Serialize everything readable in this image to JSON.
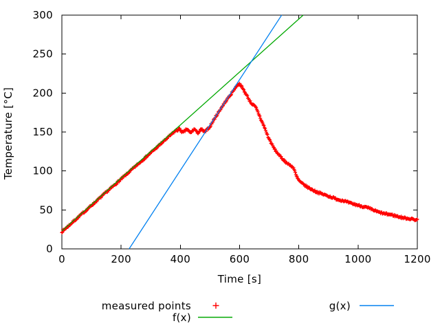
{
  "window": {
    "background": "#ffffff"
  },
  "chart_data": {
    "type": "scatter",
    "title": "",
    "xlabel": "Time [s]",
    "ylabel": "Temperature [°C]",
    "xlim": [
      0,
      1200
    ],
    "ylim": [
      0,
      300
    ],
    "xticks": [
      "0",
      "200",
      "400",
      "600",
      "800",
      "1000",
      "1200"
    ],
    "xtick_values": [
      0,
      200,
      400,
      600,
      800,
      1000,
      1200
    ],
    "yticks": [
      "0",
      "50",
      "100",
      "150",
      "200",
      "250",
      "300"
    ],
    "ytick_values": [
      0,
      50,
      100,
      150,
      200,
      250,
      300
    ],
    "grid": false,
    "legend_position": "below-plot",
    "axis_color": "#000000",
    "series": [
      {
        "name": "measured points",
        "type": "points",
        "marker": "plus",
        "color": "#ff0000",
        "sample_interval_s": 2,
        "noise_amplitude_c": 1.2,
        "anchor_points": [
          [
            0,
            22
          ],
          [
            385,
            152
          ],
          [
            390,
            152
          ],
          [
            395,
            154
          ],
          [
            400,
            153
          ],
          [
            405,
            150
          ],
          [
            410,
            149.5
          ],
          [
            415,
            151
          ],
          [
            420,
            153.5
          ],
          [
            425,
            153
          ],
          [
            430,
            150
          ],
          [
            435,
            149
          ],
          [
            440,
            151
          ],
          [
            445,
            153.5
          ],
          [
            450,
            153
          ],
          [
            455,
            150
          ],
          [
            460,
            149
          ],
          [
            465,
            151
          ],
          [
            470,
            153
          ],
          [
            475,
            152.5
          ],
          [
            480,
            150
          ],
          [
            485,
            150.5
          ],
          [
            490,
            153
          ],
          [
            500,
            157
          ],
          [
            515,
            167
          ],
          [
            530,
            176
          ],
          [
            545,
            185
          ],
          [
            560,
            193
          ],
          [
            572,
            199
          ],
          [
            582,
            205
          ],
          [
            590,
            209
          ],
          [
            597,
            212
          ],
          [
            602,
            211
          ],
          [
            607,
            208
          ],
          [
            612,
            205
          ],
          [
            618,
            201
          ],
          [
            624,
            197
          ],
          [
            630,
            193
          ],
          [
            636,
            189
          ],
          [
            642,
            186
          ],
          [
            648,
            184
          ],
          [
            654,
            182
          ],
          [
            660,
            177
          ],
          [
            666,
            172
          ],
          [
            672,
            166
          ],
          [
            678,
            161
          ],
          [
            684,
            156
          ],
          [
            690,
            150
          ],
          [
            697,
            143
          ],
          [
            704,
            138
          ],
          [
            712,
            132
          ],
          [
            720,
            127
          ],
          [
            728,
            123
          ],
          [
            736,
            119
          ],
          [
            744,
            116
          ],
          [
            752,
            113
          ],
          [
            760,
            110
          ],
          [
            768,
            108
          ],
          [
            776,
            106
          ],
          [
            782,
            104
          ],
          [
            786,
            100
          ],
          [
            790,
            95
          ],
          [
            795,
            91
          ],
          [
            800,
            88
          ],
          [
            807,
            85
          ],
          [
            815,
            83
          ],
          [
            822,
            81
          ],
          [
            830,
            79
          ],
          [
            845,
            76
          ],
          [
            860,
            73
          ],
          [
            875,
            71
          ],
          [
            890,
            69
          ],
          [
            905,
            67
          ],
          [
            920,
            65
          ],
          [
            935,
            63
          ],
          [
            950,
            62
          ],
          [
            970,
            59
          ],
          [
            990,
            57
          ],
          [
            1010,
            55
          ],
          [
            1030,
            53
          ],
          [
            1050,
            50
          ],
          [
            1070,
            47
          ],
          [
            1090,
            45
          ],
          [
            1110,
            44
          ],
          [
            1130,
            42
          ],
          [
            1150,
            40
          ],
          [
            1170,
            39
          ],
          [
            1200,
            37
          ]
        ]
      },
      {
        "name": "f(x)",
        "type": "line",
        "color": "#00a800",
        "fit": "linear",
        "slope": 0.34,
        "intercept": 23,
        "x_range": [
          0,
          814.7
        ]
      },
      {
        "name": "g(x)",
        "type": "line",
        "color": "#0080f0",
        "fit": "linear",
        "slope": 0.5825,
        "intercept": -132.23,
        "x_range": [
          227,
          742.1
        ]
      }
    ]
  }
}
